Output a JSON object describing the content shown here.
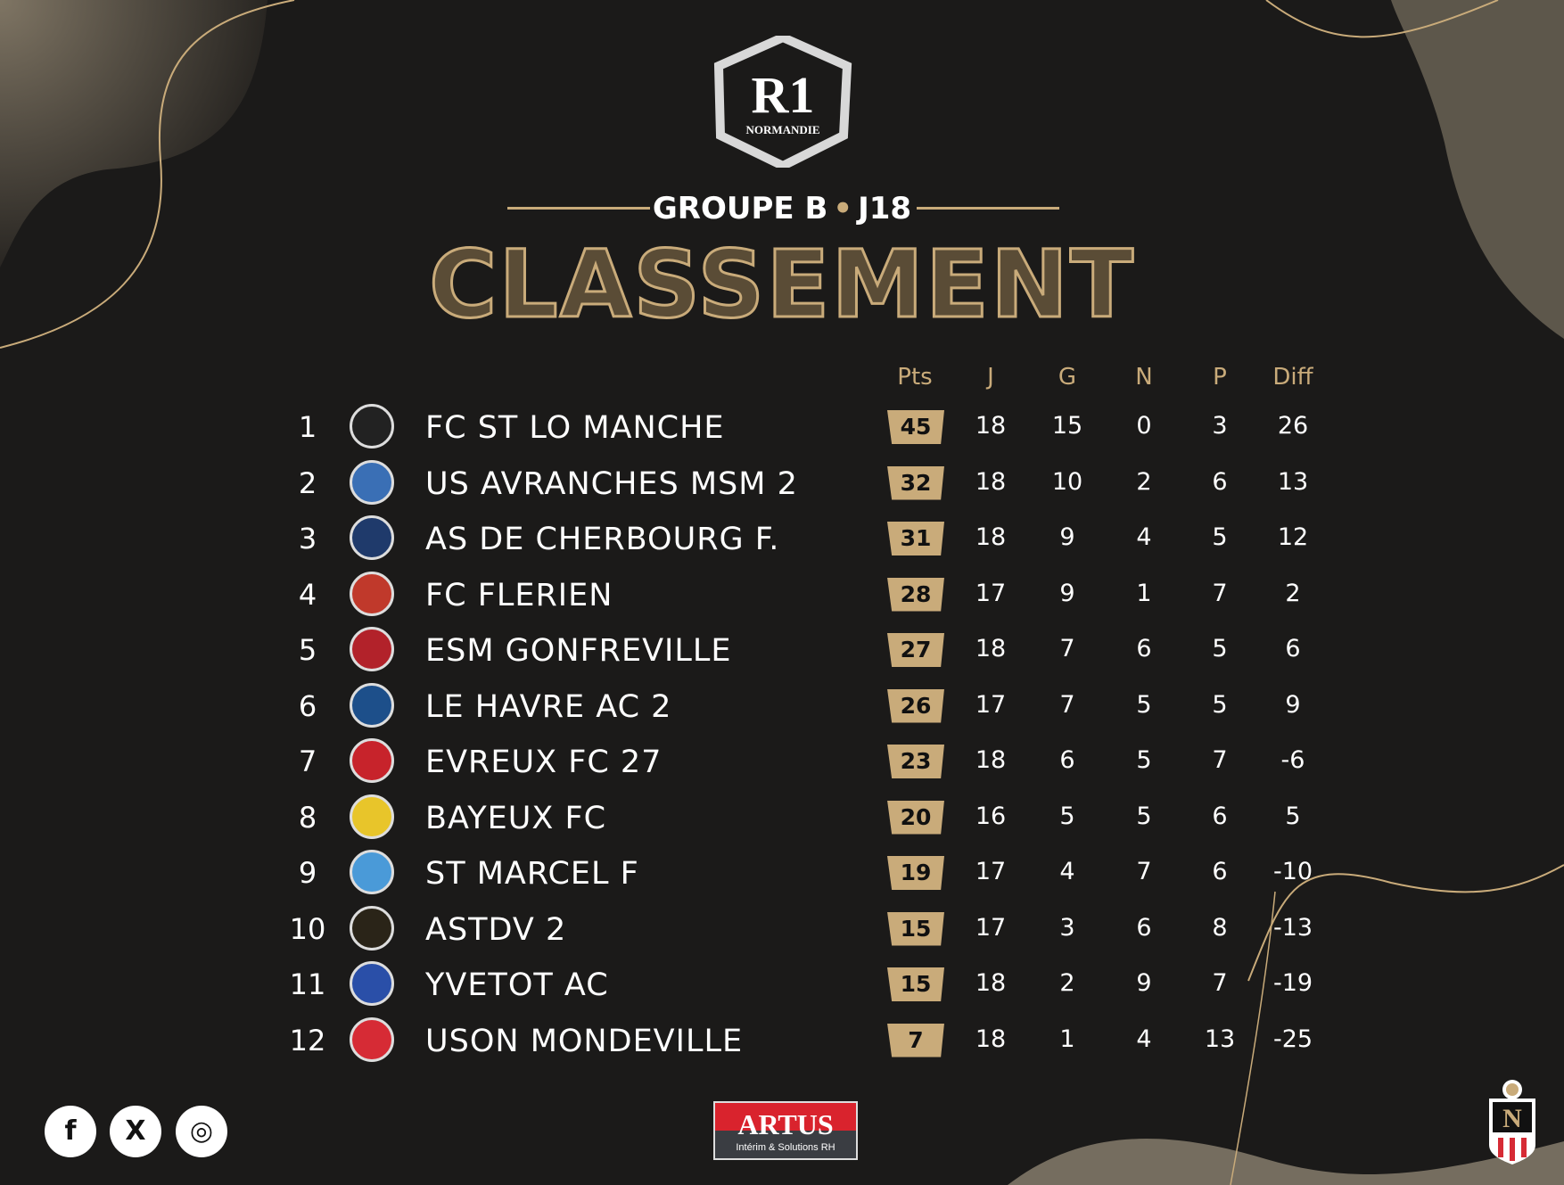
{
  "colors": {
    "accent": "#c9ab7a",
    "background": "#1b1a19"
  },
  "header": {
    "logo_text": "R1",
    "logo_sub": "NORMANDIE",
    "group": "GROUPE B",
    "separator": "•",
    "matchday": "J18",
    "title": "CLASSEMENT"
  },
  "columns": [
    "Pts",
    "J",
    "G",
    "N",
    "P",
    "Diff"
  ],
  "rows": [
    {
      "rank": "1",
      "team": "FC ST LO MANCHE",
      "pts": "45",
      "j": "18",
      "g": "15",
      "n": "0",
      "p": "3",
      "diff": "26",
      "logo_color": "#222"
    },
    {
      "rank": "2",
      "team": "US AVRANCHES MSM 2",
      "pts": "32",
      "j": "18",
      "g": "10",
      "n": "2",
      "p": "6",
      "diff": "13",
      "logo_color": "#3a6fb5"
    },
    {
      "rank": "3",
      "team": "AS DE CHERBOURG F.",
      "pts": "31",
      "j": "18",
      "g": "9",
      "n": "4",
      "p": "5",
      "diff": "12",
      "logo_color": "#1f3a6b"
    },
    {
      "rank": "4",
      "team": "FC FLERIEN",
      "pts": "28",
      "j": "17",
      "g": "9",
      "n": "1",
      "p": "7",
      "diff": "2",
      "logo_color": "#c0392b"
    },
    {
      "rank": "5",
      "team": "ESM GONFREVILLE",
      "pts": "27",
      "j": "18",
      "g": "7",
      "n": "6",
      "p": "5",
      "diff": "6",
      "logo_color": "#b2222a"
    },
    {
      "rank": "6",
      "team": "LE HAVRE AC 2",
      "pts": "26",
      "j": "17",
      "g": "7",
      "n": "5",
      "p": "5",
      "diff": "9",
      "logo_color": "#1d4f8a"
    },
    {
      "rank": "7",
      "team": "EVREUX FC 27",
      "pts": "23",
      "j": "18",
      "g": "6",
      "n": "5",
      "p": "7",
      "diff": "-6",
      "logo_color": "#c7232b"
    },
    {
      "rank": "8",
      "team": "BAYEUX FC",
      "pts": "20",
      "j": "16",
      "g": "5",
      "n": "5",
      "p": "6",
      "diff": "5",
      "logo_color": "#e8c52a"
    },
    {
      "rank": "9",
      "team": "ST MARCEL F",
      "pts": "19",
      "j": "17",
      "g": "4",
      "n": "7",
      "p": "6",
      "diff": "-10",
      "logo_color": "#4a9ad8"
    },
    {
      "rank": "10",
      "team": "ASTDV 2",
      "pts": "15",
      "j": "17",
      "g": "3",
      "n": "6",
      "p": "8",
      "diff": "-13",
      "logo_color": "#2a2418"
    },
    {
      "rank": "11",
      "team": "YVETOT AC",
      "pts": "15",
      "j": "18",
      "g": "2",
      "n": "9",
      "p": "7",
      "diff": "-19",
      "logo_color": "#2a4fa8"
    },
    {
      "rank": "12",
      "team": "USON MONDEVILLE",
      "pts": "7",
      "j": "18",
      "g": "1",
      "n": "4",
      "p": "13",
      "diff": "-25",
      "logo_color": "#d62b35"
    }
  ],
  "footer": {
    "social": [
      "facebook-icon",
      "x-icon",
      "instagram-icon"
    ],
    "social_glyphs": [
      "f",
      "X",
      "◎"
    ],
    "sponsor": "ARTUS",
    "sponsor_sub": "Intérim & Solutions RH",
    "league_logo": "N NORMANDIE"
  }
}
